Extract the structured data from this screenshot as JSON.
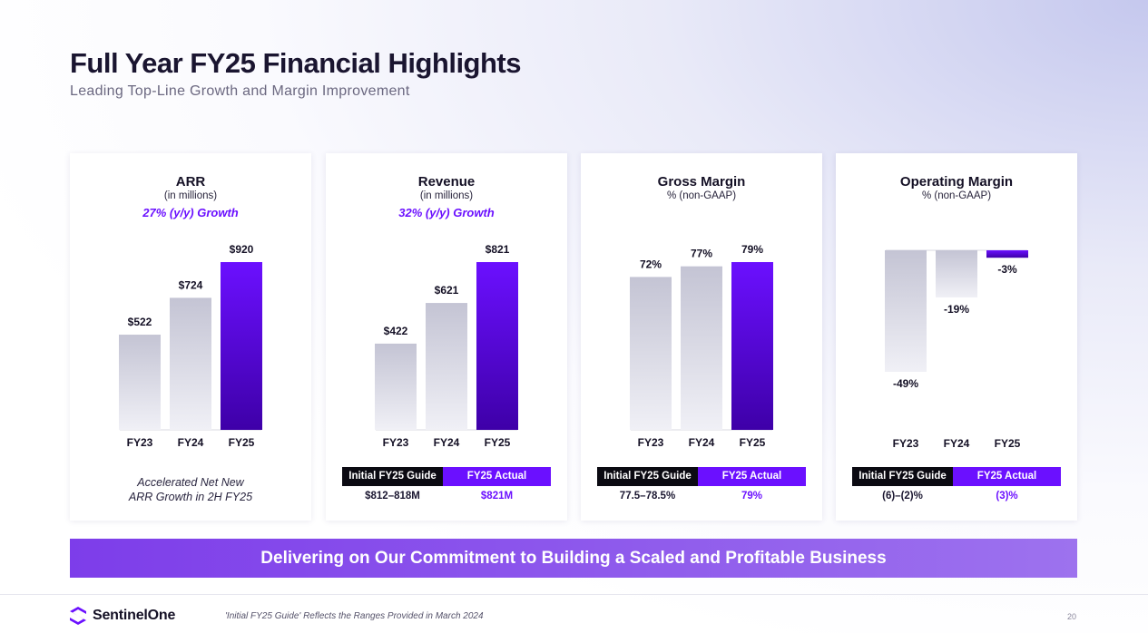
{
  "header": {
    "title": "Full Year FY25 Financial Highlights",
    "subtitle": "Leading Top-Line Growth and Margin Improvement"
  },
  "colors": {
    "accent": "#6b10ff",
    "bar_gray_top": "#c4c4d4",
    "bar_gray_bottom": "#f0f0f6",
    "bar_purple_top": "#6b10ff",
    "bar_purple_bottom": "#3e00a8"
  },
  "cards": [
    {
      "title": "ARR",
      "subtitle": "(in millions)",
      "growth": "27% (y/y) Growth",
      "note_line1": "Accelerated Net New",
      "note_line2": "ARR Growth in 2H FY25"
    },
    {
      "title": "Revenue",
      "subtitle": "(in millions)",
      "growth": "32% (y/y) Growth",
      "guide": {
        "head_left": "Initial FY25 Guide",
        "head_right": "FY25 Actual",
        "value_left": "$812–818M",
        "value_right": "$821M"
      }
    },
    {
      "title": "Gross Margin",
      "subtitle": "% (non-GAAP)",
      "growth": "",
      "guide": {
        "head_left": "Initial FY25 Guide",
        "head_right": "FY25 Actual",
        "value_left": "77.5–78.5%",
        "value_right": "79%"
      }
    },
    {
      "title": "Operating Margin",
      "subtitle": "% (non-GAAP)",
      "growth": "",
      "guide": {
        "head_left": "Initial FY25 Guide",
        "head_right": "FY25 Actual",
        "value_left": "(6)–(2)%",
        "value_right": "(3)%"
      }
    }
  ],
  "chart_data": [
    {
      "type": "bar",
      "title": "ARR",
      "categories": [
        "FY23",
        "FY24",
        "FY25"
      ],
      "values": [
        522,
        724,
        920
      ],
      "labels": [
        "$522",
        "$724",
        "$920"
      ],
      "ylim": [
        0,
        920
      ]
    },
    {
      "type": "bar",
      "title": "Revenue",
      "categories": [
        "FY23",
        "FY24",
        "FY25"
      ],
      "values": [
        422,
        621,
        821
      ],
      "labels": [
        "$422",
        "$621",
        "$821"
      ],
      "ylim": [
        0,
        821
      ]
    },
    {
      "type": "bar",
      "title": "Gross Margin",
      "categories": [
        "FY23",
        "FY24",
        "FY25"
      ],
      "values": [
        72,
        77,
        79
      ],
      "labels": [
        "72%",
        "77%",
        "79%"
      ],
      "ylim": [
        0,
        79
      ]
    },
    {
      "type": "bar",
      "title": "Operating Margin",
      "categories": [
        "FY23",
        "FY24",
        "FY25"
      ],
      "values": [
        -49,
        -19,
        -3
      ],
      "labels": [
        "-49%",
        "-19%",
        "-3%"
      ],
      "ylim": [
        -49,
        0
      ]
    }
  ],
  "banner": {
    "text": "Delivering on Our Commitment to Building a Scaled and Profitable Business"
  },
  "footer": {
    "brand": "SentinelOne",
    "footnote": "'Initial FY25 Guide' Reflects the Ranges Provided in March 2024",
    "page": "20"
  }
}
